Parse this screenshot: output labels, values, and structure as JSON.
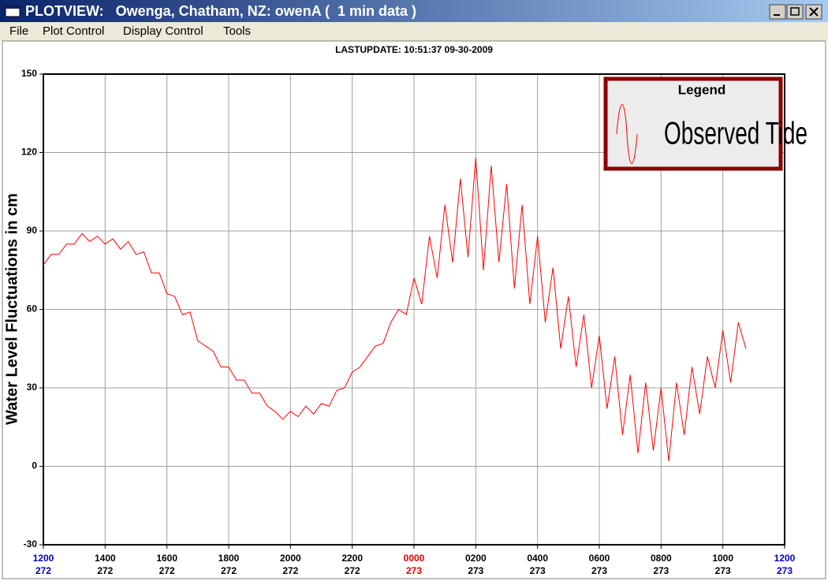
{
  "window": {
    "title": "PLOTVIEW:   Owenga, Chatham, NZ: owenA (  1 min data )"
  },
  "menu": [
    "File",
    "Plot Control",
    "Display Control",
    "Tools"
  ],
  "chart_data": {
    "type": "line",
    "subtitle": "LASTUPDATE: 10:51:37  09-30-2009",
    "y_label": "Water Level Fluctuations in cm",
    "legend_title": "Legend",
    "x": [
      0,
      0.25,
      0.5,
      0.75,
      1,
      1.25,
      1.5,
      1.75,
      2,
      2.25,
      2.5,
      2.75,
      3,
      3.25,
      3.5,
      3.75,
      4,
      4.25,
      4.5,
      4.75,
      5,
      5.25,
      5.5,
      5.75,
      6,
      6.25,
      6.5,
      6.75,
      7,
      7.25,
      7.5,
      7.75,
      8,
      8.25,
      8.5,
      8.75,
      9,
      9.25,
      9.5,
      9.75,
      10,
      10.25,
      10.5,
      10.75,
      11,
      11.25,
      11.5,
      11.75,
      12,
      12.25,
      12.5,
      12.75,
      13,
      13.25,
      13.5,
      13.75,
      14,
      14.25,
      14.5,
      14.75,
      15,
      15.25,
      15.5,
      15.75,
      16,
      16.25,
      16.5,
      16.75,
      17,
      17.25,
      17.5,
      17.75,
      18,
      18.25,
      18.5,
      18.75,
      19,
      19.25,
      19.5,
      19.75,
      20,
      20.25,
      20.5,
      20.75,
      21,
      21.25,
      21.5,
      21.75,
      22,
      22.25,
      22.5,
      22.75
    ],
    "series": [
      {
        "name": "Observed Tide",
        "color": "#ff0000",
        "values": [
          77,
          81,
          81,
          85,
          85,
          89,
          86,
          88,
          85,
          87,
          83,
          86,
          81,
          82,
          74,
          74,
          66,
          65,
          58,
          59,
          48,
          46,
          44,
          38,
          38,
          33,
          33,
          28,
          28,
          23,
          21,
          18,
          21,
          19,
          23,
          20,
          24,
          23,
          29,
          30,
          36,
          38,
          42,
          46,
          47,
          55,
          60,
          58,
          72,
          62,
          88,
          72,
          100,
          78,
          110,
          80,
          118,
          75,
          115,
          78,
          108,
          68,
          100,
          62,
          88,
          55,
          76,
          45,
          65,
          38,
          58,
          30,
          50,
          22,
          42,
          12,
          35,
          5,
          32,
          6,
          30,
          2,
          32,
          12,
          38,
          20,
          42,
          30,
          52,
          32,
          55,
          45
        ]
      }
    ],
    "xlim": [
      0,
      24
    ],
    "xticks": [
      {
        "value": 0,
        "label": "1200",
        "day": "272",
        "color": "#0000c0"
      },
      {
        "value": 2,
        "label": "1400",
        "day": "272",
        "color": "#000000"
      },
      {
        "value": 4,
        "label": "1600",
        "day": "272",
        "color": "#000000"
      },
      {
        "value": 6,
        "label": "1800",
        "day": "272",
        "color": "#000000"
      },
      {
        "value": 8,
        "label": "2000",
        "day": "272",
        "color": "#000000"
      },
      {
        "value": 10,
        "label": "2200",
        "day": "272",
        "color": "#000000"
      },
      {
        "value": 12,
        "label": "0000",
        "day": "273",
        "color": "#e00000"
      },
      {
        "value": 14,
        "label": "0200",
        "day": "273",
        "color": "#000000"
      },
      {
        "value": 16,
        "label": "0400",
        "day": "273",
        "color": "#000000"
      },
      {
        "value": 18,
        "label": "0600",
        "day": "273",
        "color": "#000000"
      },
      {
        "value": 20,
        "label": "0800",
        "day": "273",
        "color": "#000000"
      },
      {
        "value": 22,
        "label": "1000",
        "day": "273",
        "color": "#000000"
      },
      {
        "value": 24,
        "label": "1200",
        "day": "273",
        "color": "#0000c0"
      }
    ],
    "ylim": [
      -30,
      150
    ],
    "yticks": [
      -30,
      0,
      30,
      60,
      90,
      120,
      150
    ],
    "grid": true
  }
}
